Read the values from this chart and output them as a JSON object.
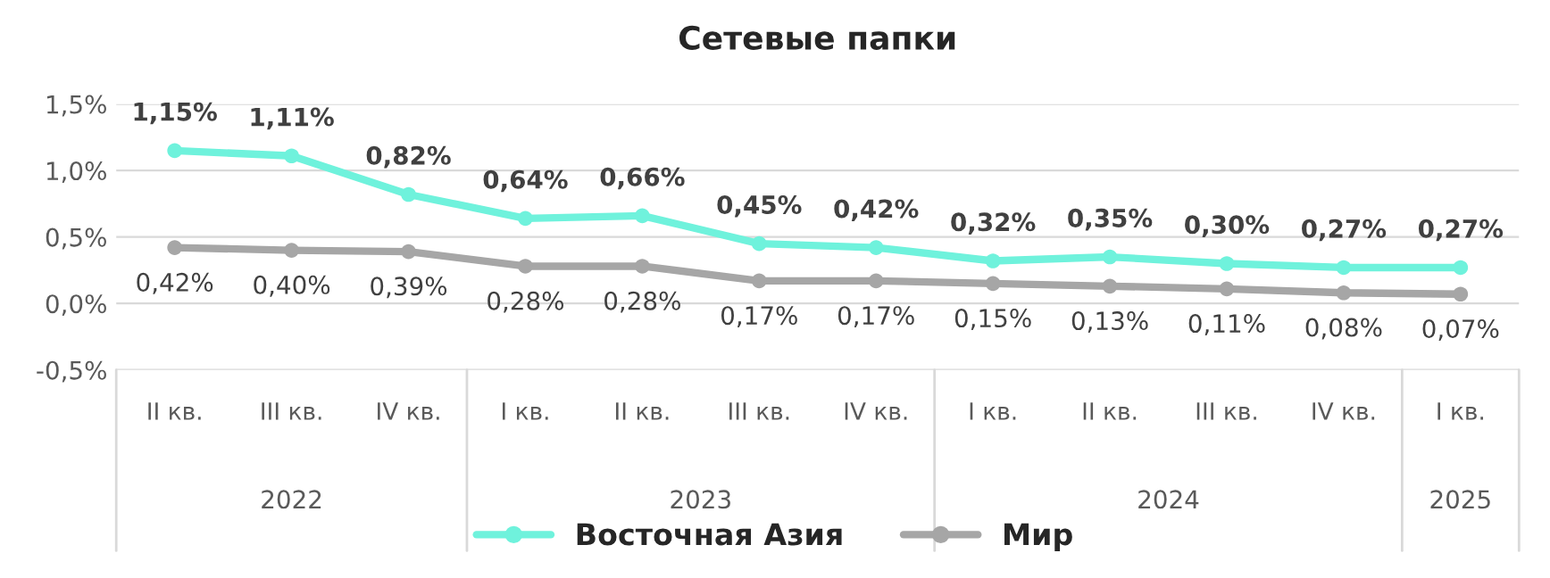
{
  "chart_data": {
    "type": "line",
    "title": "Сетевые папки",
    "categories": [
      "II кв.",
      "III кв.",
      "IV кв.",
      "I кв.",
      "II кв.",
      "III кв.",
      "IV кв.",
      "I кв.",
      "II кв.",
      "III кв.",
      "IV кв.",
      "I кв."
    ],
    "annotations": [
      "2022",
      "2023",
      "2024",
      "2025"
    ],
    "series": [
      {
        "name": "Восточная Азия",
        "color": "#6ff2dc",
        "values": [
          1.15,
          1.11,
          0.82,
          0.64,
          0.66,
          0.45,
          0.42,
          0.32,
          0.35,
          0.3,
          0.27,
          0.27
        ],
        "value_labels": [
          "1,15%",
          "1,11%",
          "0,82%",
          "0,64%",
          "0,66%",
          "0,45%",
          "0,42%",
          "0,32%",
          "0,35%",
          "0,30%",
          "0,27%",
          "0,27%"
        ]
      },
      {
        "name": "Мир",
        "color": "#a6a6a6",
        "values": [
          0.42,
          0.4,
          0.39,
          0.28,
          0.28,
          0.17,
          0.17,
          0.15,
          0.13,
          0.11,
          0.08,
          0.07
        ],
        "value_labels": [
          "0,42%",
          "0,40%",
          "0,39%",
          "0,28%",
          "0,28%",
          "0,17%",
          "0,17%",
          "0,15%",
          "0,13%",
          "0,11%",
          "0,08%",
          "0,07%"
        ]
      }
    ],
    "ylim": [
      -0.5,
      1.5
    ],
    "yticks": [
      {
        "value": -0.5,
        "label": "-0,5%"
      },
      {
        "value": 0,
        "label": "0,0%"
      },
      {
        "value": 0.5,
        "label": "0,5%"
      },
      {
        "value": 1.0,
        "label": "1,0%"
      },
      {
        "value": 1.5,
        "label": "1,5%"
      }
    ],
    "grid": "y",
    "legend": "bottom",
    "marker": "circle",
    "line_style": "solid"
  }
}
